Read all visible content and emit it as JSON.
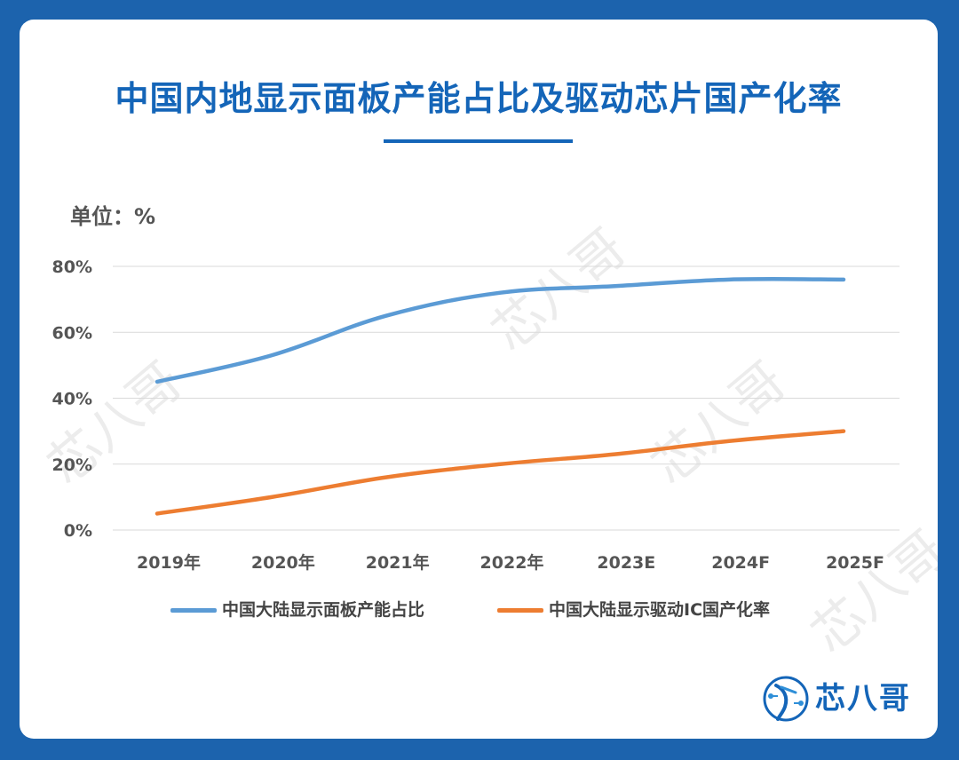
{
  "title": "中国内地显示面板产能占比及驱动芯片国产化率",
  "unit_label": "单位：%",
  "watermark_text": "芯八哥",
  "logo_text": "芯八哥",
  "colors": {
    "background": "#1c63ad",
    "title": "#1465b8",
    "series_panel": "#5b9bd5",
    "series_ic": "#ed7d31",
    "grid": "#d9d9d9"
  },
  "chart_data": {
    "type": "line",
    "categories": [
      "2019年",
      "2020年",
      "2021年",
      "2022年",
      "2023E",
      "2024F",
      "2025F"
    ],
    "series": [
      {
        "name": "中国大陆显示面板产能占比",
        "values": [
          45,
          53,
          65,
          72,
          74,
          76,
          76
        ]
      },
      {
        "name": "中国大陆显示驱动IC国产化率",
        "values": [
          5,
          10,
          16,
          20,
          23,
          27,
          30
        ]
      }
    ],
    "y_ticks": [
      "0%",
      "20%",
      "40%",
      "60%",
      "80%"
    ],
    "ylim": [
      0,
      80
    ],
    "grid": true,
    "legend_position": "bottom"
  }
}
